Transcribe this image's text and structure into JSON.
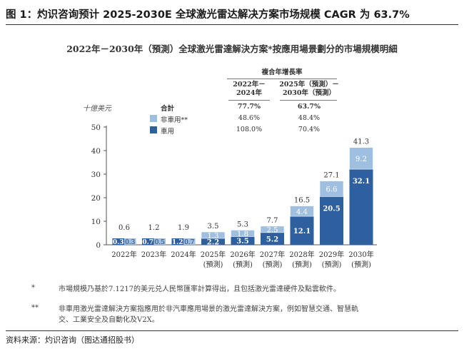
{
  "figure": {
    "title": "图 1：灼识咨询预计 2025-2030E 全球激光雷达解决方案市场规模 CAGR 为 63.7%",
    "source": "资料来源：灼识咨询（图达通招股书）"
  },
  "chart_data": {
    "type": "bar",
    "stacked": true,
    "title": "2022年－2030年（預測）全球激光雷達解決方案*按應用場景劃分的市場規模明細",
    "ylabel": "十億美元",
    "xlabel": "",
    "ylim": [
      0,
      50
    ],
    "yticks": [
      "0",
      "10",
      "20",
      "30",
      "40",
      "50"
    ],
    "grid": false,
    "categories": [
      [
        "2022年"
      ],
      [
        "2023年"
      ],
      [
        "2024年"
      ],
      [
        "2025年",
        "(預測)"
      ],
      [
        "2026年",
        "(預測)"
      ],
      [
        "2027年",
        "(預測)"
      ],
      [
        "2028年",
        "(預測)"
      ],
      [
        "2029年",
        "(預測)"
      ],
      [
        "2030年",
        "(預測)"
      ]
    ],
    "series": [
      {
        "name": "車用",
        "color": "#2e5f9e",
        "values": [
          0.3,
          0.7,
          1.2,
          2.2,
          3.5,
          5.2,
          12.1,
          20.5,
          32.1
        ]
      },
      {
        "name": "非車用**",
        "color": "#9fbfe0",
        "values": [
          0.3,
          0.5,
          0.7,
          1.3,
          1.8,
          2.5,
          4.4,
          6.6,
          9.2
        ]
      }
    ],
    "totals": [
      "0.6",
      "1.2",
      "1.9",
      "3.5",
      "5.3",
      "7.7",
      "16.5",
      "27.1",
      "41.3"
    ],
    "cagr_table": {
      "header": "複合年增長率",
      "periods": [
        [
          "2022年－",
          "2024年"
        ],
        [
          "2025年（預測）－",
          "2030年（預測）"
        ]
      ],
      "rows": [
        {
          "label": "合計",
          "values": [
            "77.7%",
            "63.7%"
          ]
        },
        {
          "label": "非車用**",
          "values": [
            "48.6%",
            "48.4%"
          ]
        },
        {
          "label": "車用",
          "values": [
            "108.0%",
            "70.4%"
          ]
        }
      ]
    },
    "footnotes": [
      {
        "mark": "*",
        "text": "市場規模乃基於7.1217的美元兑人民幣匯率計算得出，且包括激光雷達硬件及點雲軟件。"
      },
      {
        "mark": "**",
        "lines": [
          "非車用激光雷達解決方案指應用於非汽車應用場景的激光雷達解決方案，例如智慧交通、智慧軌",
          "交、工業安全及自動化及V2X。"
        ]
      }
    ]
  }
}
